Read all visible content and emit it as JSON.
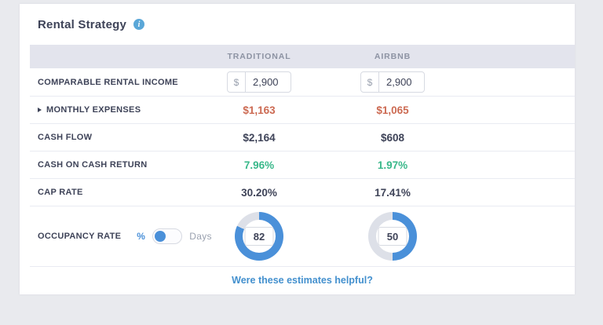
{
  "title": "Rental Strategy",
  "icons": {
    "info_glyph": "i"
  },
  "columns": [
    "TRADITIONAL",
    "AIRBNB"
  ],
  "rows": {
    "comparable_rental_income": {
      "label": "COMPARABLE RENTAL INCOME",
      "currency_symbol": "$",
      "traditional_value": "2,900",
      "airbnb_value": "2,900"
    },
    "monthly_expenses": {
      "label": "MONTHLY EXPENSES",
      "traditional_value": "$1,163",
      "airbnb_value": "$1,065"
    },
    "cash_flow": {
      "label": "CASH FLOW",
      "traditional_value": "$2,164",
      "airbnb_value": "$608"
    },
    "cash_on_cash_return": {
      "label": "CASH ON CASH RETURN",
      "traditional_value": "7.96%",
      "airbnb_value": "1.97%"
    },
    "cap_rate": {
      "label": "CAP RATE",
      "traditional_value": "30.20%",
      "airbnb_value": "17.41%"
    },
    "occupancy_rate": {
      "label": "OCCUPANCY RATE",
      "toggle": {
        "left_label": "%",
        "right_label": "Days",
        "selected": "%"
      },
      "traditional": {
        "value": "82",
        "percent": 82
      },
      "airbnb": {
        "value": "50",
        "percent": 50
      }
    }
  },
  "footer": {
    "link_label": "Were these estimates helpful?"
  },
  "colors": {
    "page_bg": "#e9eaee",
    "card_bg": "#ffffff",
    "band_bg": "#e3e4ed",
    "header_text": "#8d93a3",
    "label_text": "#3e4358",
    "value_dark": "#3e4358",
    "value_red": "#cc6a52",
    "value_green": "#39b88a",
    "accent_blue": "#4a90d9",
    "link_blue": "#4390ce",
    "border_light": "#e9ebf2",
    "input_border": "#d7dae2",
    "muted_text": "#9aa1af",
    "donut_fill": "#4a90d9",
    "donut_track": "#dde0e8",
    "info_icon_bg": "#5aa7d8"
  }
}
